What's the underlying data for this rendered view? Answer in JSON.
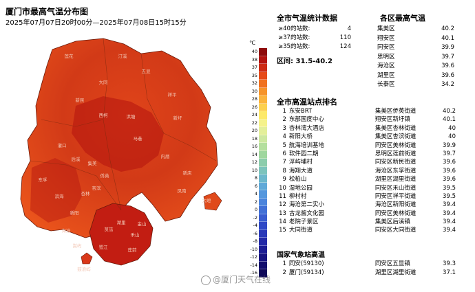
{
  "header": {
    "title": "厦门市最高气温分布图",
    "subtitle": "2025年07月07日20时00分—2025年07月08日15时15分"
  },
  "legend": {
    "unit": "℃",
    "labels": [
      "40",
      "38",
      "37",
      "35",
      "32",
      "30",
      "28",
      "26",
      "24",
      "22",
      "20",
      "18",
      "16",
      "14",
      "12",
      "10",
      "8",
      "6",
      "4",
      "2",
      "0",
      "-2",
      "-4",
      "-6",
      "-8",
      "-10",
      "-12",
      "-14",
      "-16"
    ],
    "colors": [
      "#8e0b0b",
      "#b3130f",
      "#cc2a14",
      "#e64a19",
      "#f0711f",
      "#f6942a",
      "#fbb43d",
      "#fcd04f",
      "#fde96a",
      "#f5f28a",
      "#e3ef9a",
      "#cde8a0",
      "#b4df9e",
      "#9fd79e",
      "#8ccdac",
      "#7cc4bc",
      "#6cb8cc",
      "#5fa9d8",
      "#5597dd",
      "#4b84dc",
      "#4170d6",
      "#385ccf",
      "#2f49c6",
      "#2838b8",
      "#2229a7",
      "#1c1d94",
      "#171480",
      "#120d6c",
      "#0e0858"
    ]
  },
  "stats": {
    "title": "全市气温统计数据",
    "rows": [
      {
        "label": "≥40的站数:",
        "value": "4"
      },
      {
        "label": "≥37的站数:",
        "value": "110"
      },
      {
        "label": "≥35的站数:",
        "value": "124"
      }
    ],
    "range": "区间: 31.5-40.2"
  },
  "districts": {
    "title": "各区最高气温",
    "rows": [
      {
        "name": "集美区",
        "value": "40.2"
      },
      {
        "name": "翔安区",
        "value": "40.1"
      },
      {
        "name": "同安区",
        "value": "39.9"
      },
      {
        "name": "思明区",
        "value": "39.7"
      },
      {
        "name": "海沧区",
        "value": "39.6"
      },
      {
        "name": "湖里区",
        "value": "39.6"
      },
      {
        "name": "长泰区",
        "value": "34.2"
      }
    ]
  },
  "ranking": {
    "title": "全市高温站点排名",
    "rows": [
      {
        "n": "1",
        "name": "东安BRT",
        "loc": "集美区侨英街道",
        "val": "40.2"
      },
      {
        "n": "2",
        "name": "东部国度中心",
        "loc": "翔安区新圩镇",
        "val": "40.1"
      },
      {
        "n": "3",
        "name": "杏林湾大酒店",
        "loc": "集美区杏林街道",
        "val": "40"
      },
      {
        "n": "4",
        "name": "新阳大桥",
        "loc": "集美区杏滨街道",
        "val": "40"
      },
      {
        "n": "5",
        "name": "航海培训基地",
        "loc": "同安区美林街道",
        "val": "39.9"
      },
      {
        "n": "6",
        "name": "软件园二期",
        "loc": "思明区莲前街道",
        "val": "39.7"
      },
      {
        "n": "7",
        "name": "浮屿埔村",
        "loc": "同安区新民街道",
        "val": "39.6"
      },
      {
        "n": "8",
        "name": "海翔大道",
        "loc": "海沧区东孚街道",
        "val": "39.6"
      },
      {
        "n": "9",
        "name": "松柏山",
        "loc": "湖里区湖里街道",
        "val": "39.6"
      },
      {
        "n": "10",
        "name": "湿地公园",
        "loc": "同安区禾山街道",
        "val": "39.5"
      },
      {
        "n": "11",
        "name": "柳村村",
        "loc": "同安区祥平街道",
        "val": "39.5"
      },
      {
        "n": "12",
        "name": "海沧第二实小",
        "loc": "海沧区新阳街道",
        "val": "39.4"
      },
      {
        "n": "13",
        "name": "古龙酱文化园",
        "loc": "同安区美林街道",
        "val": "39.4"
      },
      {
        "n": "14",
        "name": "老院子景区",
        "loc": "集美区后溪镇",
        "val": "39.4"
      },
      {
        "n": "15",
        "name": "大同街道",
        "loc": "同安区大同街道",
        "val": "39.4"
      }
    ]
  },
  "national": {
    "title": "国家气象站高温",
    "rows": [
      {
        "n": "1",
        "name": "同安(59130)",
        "loc": "同安区五显镇",
        "val": "39.3"
      },
      {
        "n": "2",
        "name": "厦门(59134)",
        "loc": "湖里区湖里街道",
        "val": "37.1"
      }
    ]
  },
  "watermark": "@厦门天气在线",
  "map_labels": [
    "莲花",
    "汀溪",
    "五显",
    "大同",
    "祥平",
    "新民",
    "西柯",
    "洪塘",
    "新圩",
    "马巷",
    "内厝",
    "新店",
    "大嶝",
    "灌口",
    "东孚",
    "后溪",
    "杏林",
    "侨英",
    "新阳",
    "海沧",
    "嵩屿",
    "鼓浪屿",
    "湖里",
    "禾山",
    "筼筜",
    "鹭江",
    "莲前",
    "金山",
    "集美",
    "杏滨",
    "滨海",
    "凤南"
  ]
}
